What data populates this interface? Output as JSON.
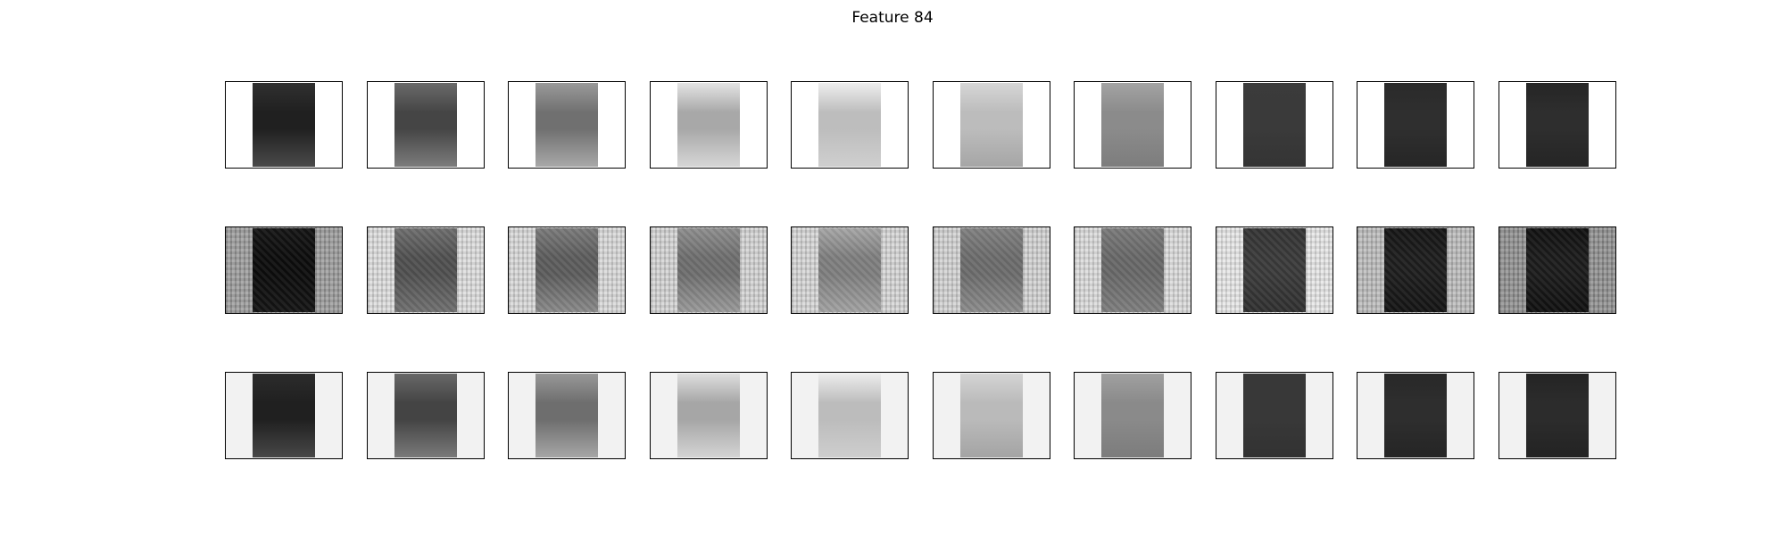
{
  "title": "Feature 84",
  "grid": {
    "rows": 3,
    "cols": 10
  },
  "rows": [
    {
      "background": "#ffffff",
      "strip_tones": [
        {
          "top": "#303030",
          "mid": "#202020",
          "bottom": "#4a4a4a"
        },
        {
          "top": "#6a6a6a",
          "mid": "#454545",
          "bottom": "#7c7c7c"
        },
        {
          "top": "#9a9a9a",
          "mid": "#707070",
          "bottom": "#a8a8a8"
        },
        {
          "top": "#e4e4e4",
          "mid": "#a8a8a8",
          "bottom": "#d6d6d6"
        },
        {
          "top": "#eeeeee",
          "mid": "#bdbdbd",
          "bottom": "#cfcfcf"
        },
        {
          "top": "#d6d6d6",
          "mid": "#bcbcbc",
          "bottom": "#a6a6a6"
        },
        {
          "top": "#a3a3a3",
          "mid": "#8b8b8b",
          "bottom": "#7d7d7d"
        },
        {
          "top": "#3b3b3b",
          "mid": "#3a3a3a",
          "bottom": "#343434"
        },
        {
          "top": "#2a2a2a",
          "mid": "#2f2f2f",
          "bottom": "#262626"
        },
        {
          "top": "#252525",
          "mid": "#2e2e2e",
          "bottom": "#252525"
        }
      ]
    },
    {
      "background": "noise",
      "strip_tones": [
        {
          "top": "#151515",
          "mid": "#0d0d0d",
          "bottom": "#151515",
          "edge": "#9a9a9a"
        },
        {
          "top": "#6e6e6e",
          "mid": "#505050",
          "bottom": "#707070",
          "edge": "#dcdcdc"
        },
        {
          "top": "#7a7a7a",
          "mid": "#5c5c5c",
          "bottom": "#8a8a8a",
          "edge": "#d8d8d8"
        },
        {
          "top": "#8e8e8e",
          "mid": "#6e6e6e",
          "bottom": "#9a9a9a",
          "edge": "#d3d3d3"
        },
        {
          "top": "#a6a6a6",
          "mid": "#7e7e7e",
          "bottom": "#a2a2a2",
          "edge": "#d5d5d5"
        },
        {
          "top": "#808080",
          "mid": "#6c6c6c",
          "bottom": "#8c8c8c",
          "edge": "#d1d1d1"
        },
        {
          "top": "#7a7a7a",
          "mid": "#686868",
          "bottom": "#7e7e7e",
          "edge": "#dadada"
        },
        {
          "top": "#343434",
          "mid": "#3a3a3a",
          "bottom": "#303030",
          "edge": "#e6e6e6"
        },
        {
          "top": "#151515",
          "mid": "#1e1e1e",
          "bottom": "#141414",
          "edge": "#bbbbbb"
        },
        {
          "top": "#111111",
          "mid": "#1c1c1c",
          "bottom": "#101010",
          "edge": "#8e8e8e"
        }
      ]
    },
    {
      "background": "#f2f2f2",
      "strip_tones": [
        {
          "top": "#2c2c2c",
          "mid": "#202020",
          "bottom": "#484848"
        },
        {
          "top": "#686868",
          "mid": "#444444",
          "bottom": "#7a7a7a"
        },
        {
          "top": "#989898",
          "mid": "#6e6e6e",
          "bottom": "#a6a6a6"
        },
        {
          "top": "#dedede",
          "mid": "#a6a6a6",
          "bottom": "#d4d4d4"
        },
        {
          "top": "#ececec",
          "mid": "#bcbcbc",
          "bottom": "#cecece"
        },
        {
          "top": "#d4d4d4",
          "mid": "#bababa",
          "bottom": "#a4a4a4"
        },
        {
          "top": "#a0a0a0",
          "mid": "#8a8a8a",
          "bottom": "#7c7c7c"
        },
        {
          "top": "#383838",
          "mid": "#383838",
          "bottom": "#323232"
        },
        {
          "top": "#282828",
          "mid": "#2e2e2e",
          "bottom": "#252525"
        },
        {
          "top": "#242424",
          "mid": "#2c2c2c",
          "bottom": "#232323"
        }
      ]
    }
  ]
}
